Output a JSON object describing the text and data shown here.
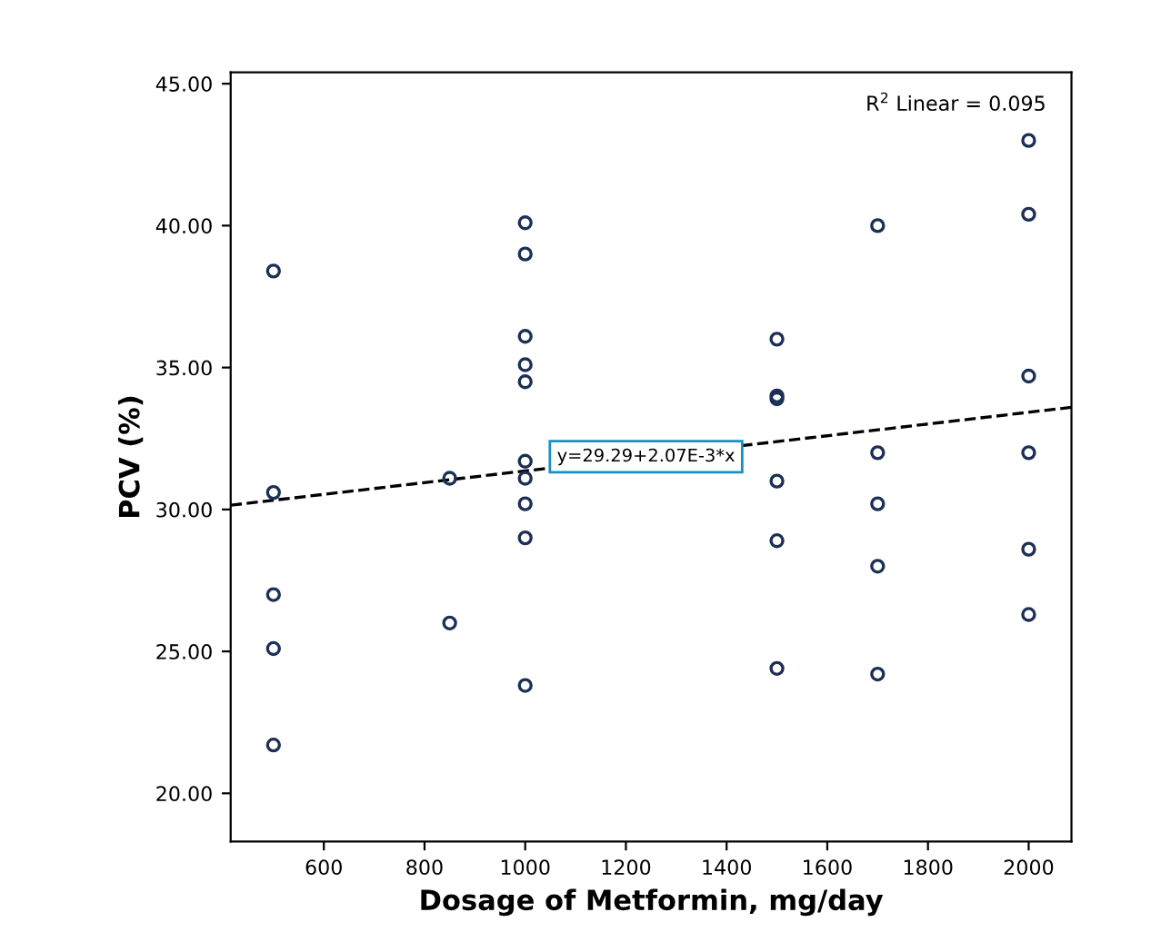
{
  "chart_data": {
    "type": "scatter",
    "xlabel": "Dosage of Metformin, mg/day",
    "ylabel": "PCV (%)",
    "series": [
      {
        "color": "#1c2f55",
        "marker": "circle",
        "x": [
          500,
          500,
          500,
          500,
          500,
          850,
          850,
          1000,
          1000,
          1000,
          1000,
          1000,
          1000,
          1000,
          1000,
          1000,
          1000,
          1500,
          1500,
          1500,
          1500,
          1500,
          1500,
          1700,
          1700,
          1700,
          1700,
          1700,
          2000,
          2000,
          2000,
          2000,
          2000,
          2000
        ],
        "values": [
          38.4,
          30.6,
          27.0,
          25.1,
          21.7,
          31.1,
          26.0,
          40.1,
          39.0,
          36.1,
          35.1,
          34.5,
          31.7,
          31.1,
          30.2,
          29.0,
          23.8,
          36.0,
          34.0,
          33.9,
          31.0,
          28.9,
          24.4,
          40.0,
          32.0,
          30.2,
          28.0,
          24.2,
          43.0,
          40.4,
          34.7,
          32.0,
          28.6,
          26.3
        ]
      },
      {
        "type": "line",
        "color": "#000000",
        "line_style": "dashed",
        "x": [
          415,
          2085
        ],
        "values": [
          30.15,
          33.6
        ]
      }
    ],
    "xlim": [
      415,
      2085
    ],
    "ylim": [
      18.3,
      45.4
    ],
    "xticks": [
      600,
      800,
      1000,
      1200,
      1400,
      1600,
      1800,
      2000
    ],
    "yticks": [
      {
        "value": 20,
        "label": "20.00"
      },
      {
        "value": 25,
        "label": "25.00"
      },
      {
        "value": 30,
        "label": "30.00"
      },
      {
        "value": 35,
        "label": "35.00"
      },
      {
        "value": 40,
        "label": "40.00"
      },
      {
        "value": 45,
        "label": "45.00"
      }
    ],
    "annotations": [
      {
        "text": "y=29.29+2.07E-3*x",
        "x": 1240,
        "y": 31.86
      },
      "R$^{2}$ Linear = 0.095"
    ],
    "grid": false,
    "legend": false
  }
}
